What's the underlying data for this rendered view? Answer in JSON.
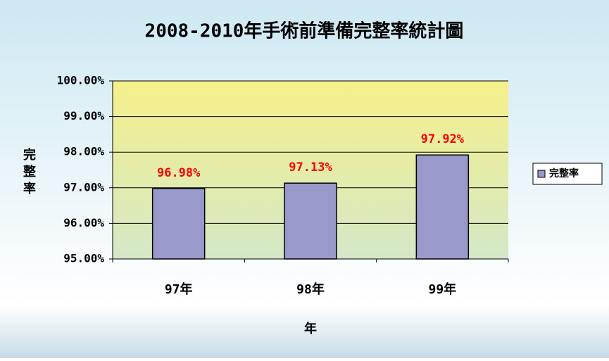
{
  "chart_data": {
    "type": "bar",
    "title": "2008-2010年手術前準備完整率統計圖",
    "x_label": "年",
    "y_label": "完整率",
    "categories": [
      "97年",
      "98年",
      "99年"
    ],
    "series": [
      {
        "name": "完整率",
        "color": "#9999cc",
        "values": [
          96.98,
          97.13,
          97.92
        ],
        "value_labels": [
          "96.98%",
          "97.13%",
          "97.92%"
        ]
      }
    ],
    "value_label_color": "#ff0000",
    "ylim": [
      95,
      100
    ],
    "yticks": [
      {
        "value": 95,
        "label": "95.00%"
      },
      {
        "value": 96,
        "label": "96.00%"
      },
      {
        "value": 97,
        "label": "97.00%"
      },
      {
        "value": 98,
        "label": "98.00%"
      },
      {
        "value": 99,
        "label": "99.00%"
      },
      {
        "value": 100,
        "label": "100.00%"
      }
    ],
    "grid": true,
    "legend": "right"
  }
}
